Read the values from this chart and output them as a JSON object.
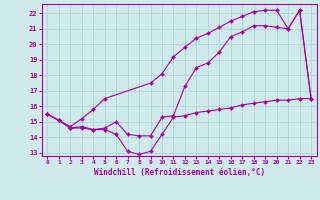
{
  "xlabel": "Windchill (Refroidissement éolien,°C)",
  "background_color": "#ceeaea",
  "line_color": "#aa00aa",
  "grid_color": "#aacfcf",
  "xlim": [
    -0.5,
    23.5
  ],
  "ylim": [
    12.8,
    22.6
  ],
  "xticks": [
    0,
    1,
    2,
    3,
    4,
    5,
    6,
    7,
    8,
    9,
    10,
    11,
    12,
    13,
    14,
    15,
    16,
    17,
    18,
    19,
    20,
    21,
    22,
    23
  ],
  "yticks": [
    13,
    14,
    15,
    16,
    17,
    18,
    19,
    20,
    21,
    22
  ],
  "line1_x": [
    0,
    1,
    2,
    3,
    4,
    5,
    6,
    7,
    8,
    9,
    10,
    11,
    12,
    13,
    14,
    15,
    16,
    17,
    18,
    19,
    20,
    21,
    22,
    23
  ],
  "line1_y": [
    15.5,
    15.1,
    14.6,
    14.6,
    14.5,
    14.5,
    14.2,
    13.1,
    12.9,
    13.1,
    14.2,
    15.3,
    15.4,
    15.6,
    15.7,
    15.8,
    15.9,
    16.1,
    16.2,
    16.3,
    16.4,
    16.4,
    16.5,
    16.5
  ],
  "line2_x": [
    0,
    1,
    2,
    3,
    4,
    5,
    6,
    7,
    8,
    9,
    10,
    11,
    12,
    13,
    14,
    15,
    16,
    17,
    18,
    19,
    20,
    21,
    22,
    23
  ],
  "line2_y": [
    15.5,
    15.1,
    14.6,
    14.7,
    14.5,
    14.6,
    15.0,
    14.2,
    14.1,
    14.1,
    15.3,
    15.4,
    17.3,
    18.5,
    18.8,
    19.5,
    20.5,
    20.8,
    21.2,
    21.2,
    21.1,
    21.0,
    22.2,
    16.5
  ],
  "line3_x": [
    0,
    1,
    2,
    3,
    4,
    5,
    9,
    10,
    11,
    12,
    13,
    14,
    15,
    16,
    17,
    18,
    19,
    20,
    21,
    22,
    23
  ],
  "line3_y": [
    15.5,
    15.1,
    14.7,
    15.2,
    15.8,
    16.5,
    17.5,
    18.1,
    19.2,
    19.8,
    20.4,
    20.7,
    21.1,
    21.5,
    21.8,
    22.1,
    22.2,
    22.2,
    21.0,
    22.2,
    16.5
  ]
}
